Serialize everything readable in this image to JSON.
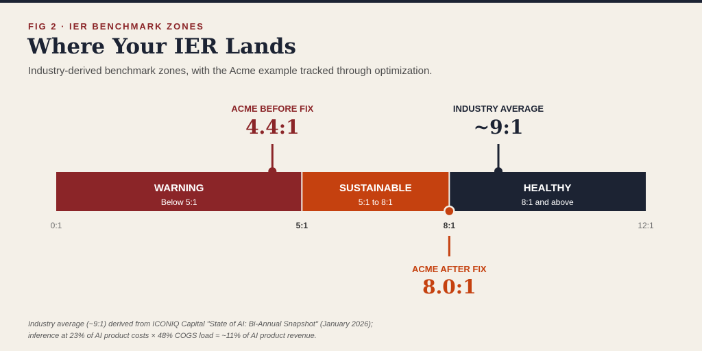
{
  "header": {
    "fig_label": "FIG 2 · IER BENCHMARK ZONES",
    "title": "Where Your IER Lands",
    "subtitle": "Industry-derived benchmark zones, with the Acme example tracked through optimization."
  },
  "chart_data": {
    "type": "bar",
    "orientation": "horizontal-scale",
    "xlim": [
      0,
      12
    ],
    "zones": [
      {
        "name": "WARNING",
        "range_label": "Below 5:1",
        "start": 0,
        "end": 5,
        "color": "#8b2528"
      },
      {
        "name": "SUSTAINABLE",
        "range_label": "5:1 to 8:1",
        "start": 5,
        "end": 8,
        "color": "#c5410f"
      },
      {
        "name": "HEALTHY",
        "range_label": "8:1 and above",
        "start": 8,
        "end": 12,
        "color": "#1c2333"
      }
    ],
    "ticks": [
      {
        "value": 0,
        "label": "0:1",
        "strong": false
      },
      {
        "value": 5,
        "label": "5:1",
        "strong": true
      },
      {
        "value": 8,
        "label": "8:1",
        "strong": true
      },
      {
        "value": 12,
        "label": "12:1",
        "strong": false
      }
    ],
    "annotations": [
      {
        "label": "ACME BEFORE FIX",
        "value_label": "4.4:1",
        "value": 4.4,
        "position": "above",
        "color": "#8b2528"
      },
      {
        "label": "INDUSTRY AVERAGE",
        "value_label": "~9:1",
        "value": 9,
        "position": "above",
        "color": "#1c2333"
      },
      {
        "label": "ACME AFTER FIX",
        "value_label": "8.0:1",
        "value": 8.0,
        "position": "below",
        "color": "#c5410f"
      }
    ]
  },
  "footnote": {
    "line1": "Industry average (~9:1) derived from ICONIQ Capital \"State of AI: Bi-Annual Snapshot\" (January 2026);",
    "line2": "inference at 23% of AI product costs × 48% COGS load ≈ ~11% of AI product revenue."
  }
}
